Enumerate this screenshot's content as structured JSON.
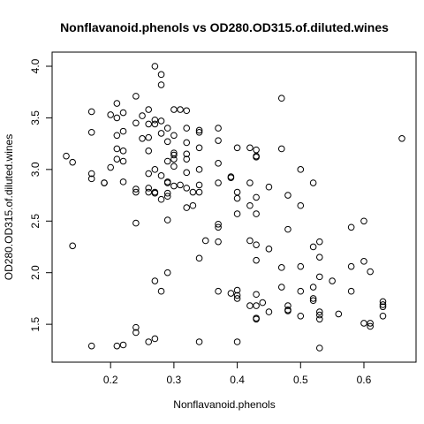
{
  "chart_data": {
    "type": "scatter",
    "title": "Nonflavanoid.phenols vs OD280.OD315.of.diluted.wines",
    "xlabel": "Nonflavanoid.phenols",
    "ylabel": "OD280.OD315.of.diluted.wines",
    "xlim": [
      0.13,
      0.66
    ],
    "ylim": [
      1.27,
      4.0
    ],
    "xticks": [
      0.2,
      0.3,
      0.4,
      0.5,
      0.6
    ],
    "yticks": [
      1.5,
      2.0,
      2.5,
      3.0,
      3.5,
      4.0
    ],
    "xtick_labels": [
      "0.2",
      "0.3",
      "0.4",
      "0.5",
      "0.6"
    ],
    "ytick_labels": [
      "1.5",
      "2.0",
      "2.5",
      "3.0",
      "3.5",
      "4.0"
    ],
    "grid": false,
    "legend": "none",
    "points": [
      {
        "x": 0.27,
        "y": 4.0
      },
      {
        "x": 0.28,
        "y": 3.92
      },
      {
        "x": 0.28,
        "y": 3.82
      },
      {
        "x": 0.47,
        "y": 3.69
      },
      {
        "x": 0.24,
        "y": 3.71
      },
      {
        "x": 0.21,
        "y": 3.64
      },
      {
        "x": 0.26,
        "y": 3.58
      },
      {
        "x": 0.3,
        "y": 3.58
      },
      {
        "x": 0.31,
        "y": 3.58
      },
      {
        "x": 0.32,
        "y": 3.57
      },
      {
        "x": 0.17,
        "y": 3.56
      },
      {
        "x": 0.22,
        "y": 3.55
      },
      {
        "x": 0.25,
        "y": 3.52
      },
      {
        "x": 0.2,
        "y": 3.53
      },
      {
        "x": 0.21,
        "y": 3.5
      },
      {
        "x": 0.27,
        "y": 3.48
      },
      {
        "x": 0.24,
        "y": 3.45
      },
      {
        "x": 0.26,
        "y": 3.44
      },
      {
        "x": 0.27,
        "y": 3.44
      },
      {
        "x": 0.28,
        "y": 3.47
      },
      {
        "x": 0.29,
        "y": 3.4
      },
      {
        "x": 0.32,
        "y": 3.4
      },
      {
        "x": 0.34,
        "y": 3.38
      },
      {
        "x": 0.37,
        "y": 3.4
      },
      {
        "x": 0.17,
        "y": 3.36
      },
      {
        "x": 0.22,
        "y": 3.37
      },
      {
        "x": 0.21,
        "y": 3.33
      },
      {
        "x": 0.3,
        "y": 3.33
      },
      {
        "x": 0.34,
        "y": 3.36
      },
      {
        "x": 0.25,
        "y": 3.3
      },
      {
        "x": 0.26,
        "y": 3.31
      },
      {
        "x": 0.28,
        "y": 3.35
      },
      {
        "x": 0.29,
        "y": 3.27
      },
      {
        "x": 0.32,
        "y": 3.26
      },
      {
        "x": 0.37,
        "y": 3.28
      },
      {
        "x": 0.66,
        "y": 3.3
      },
      {
        "x": 0.4,
        "y": 3.21
      },
      {
        "x": 0.42,
        "y": 3.21
      },
      {
        "x": 0.43,
        "y": 3.19
      },
      {
        "x": 0.47,
        "y": 3.2
      },
      {
        "x": 0.21,
        "y": 3.2
      },
      {
        "x": 0.22,
        "y": 3.18
      },
      {
        "x": 0.26,
        "y": 3.18
      },
      {
        "x": 0.3,
        "y": 3.16
      },
      {
        "x": 0.3,
        "y": 3.14
      },
      {
        "x": 0.32,
        "y": 3.15
      },
      {
        "x": 0.34,
        "y": 3.21
      },
      {
        "x": 0.37,
        "y": 3.06
      },
      {
        "x": 0.43,
        "y": 3.13
      },
      {
        "x": 0.43,
        "y": 3.12
      },
      {
        "x": 0.13,
        "y": 3.13
      },
      {
        "x": 0.14,
        "y": 3.07
      },
      {
        "x": 0.21,
        "y": 3.1
      },
      {
        "x": 0.22,
        "y": 3.08
      },
      {
        "x": 0.29,
        "y": 3.08
      },
      {
        "x": 0.3,
        "y": 3.1
      },
      {
        "x": 0.32,
        "y": 3.1
      },
      {
        "x": 0.2,
        "y": 3.02
      },
      {
        "x": 0.27,
        "y": 3.0
      },
      {
        "x": 0.3,
        "y": 3.03
      },
      {
        "x": 0.34,
        "y": 3.0
      },
      {
        "x": 0.5,
        "y": 3.0
      },
      {
        "x": 0.17,
        "y": 2.96
      },
      {
        "x": 0.26,
        "y": 2.96
      },
      {
        "x": 0.28,
        "y": 2.94
      },
      {
        "x": 0.32,
        "y": 2.97
      },
      {
        "x": 0.39,
        "y": 2.92
      },
      {
        "x": 0.39,
        "y": 2.93
      },
      {
        "x": 0.17,
        "y": 2.91
      },
      {
        "x": 0.19,
        "y": 2.87
      },
      {
        "x": 0.19,
        "y": 2.87
      },
      {
        "x": 0.22,
        "y": 2.88
      },
      {
        "x": 0.29,
        "y": 2.87
      },
      {
        "x": 0.29,
        "y": 2.88
      },
      {
        "x": 0.3,
        "y": 2.84
      },
      {
        "x": 0.31,
        "y": 2.85
      },
      {
        "x": 0.32,
        "y": 2.82
      },
      {
        "x": 0.34,
        "y": 2.85
      },
      {
        "x": 0.37,
        "y": 2.87
      },
      {
        "x": 0.42,
        "y": 2.87
      },
      {
        "x": 0.45,
        "y": 2.83
      },
      {
        "x": 0.52,
        "y": 2.87
      },
      {
        "x": 0.24,
        "y": 2.78
      },
      {
        "x": 0.24,
        "y": 2.81
      },
      {
        "x": 0.26,
        "y": 2.78
      },
      {
        "x": 0.26,
        "y": 2.82
      },
      {
        "x": 0.27,
        "y": 2.77
      },
      {
        "x": 0.27,
        "y": 2.78
      },
      {
        "x": 0.28,
        "y": 2.71
      },
      {
        "x": 0.29,
        "y": 2.74
      },
      {
        "x": 0.29,
        "y": 2.77
      },
      {
        "x": 0.33,
        "y": 2.78
      },
      {
        "x": 0.34,
        "y": 2.78
      },
      {
        "x": 0.4,
        "y": 2.78
      },
      {
        "x": 0.4,
        "y": 2.72
      },
      {
        "x": 0.43,
        "y": 2.73
      },
      {
        "x": 0.48,
        "y": 2.75
      },
      {
        "x": 0.32,
        "y": 2.63
      },
      {
        "x": 0.33,
        "y": 2.65
      },
      {
        "x": 0.42,
        "y": 2.65
      },
      {
        "x": 0.5,
        "y": 2.65
      },
      {
        "x": 0.4,
        "y": 2.57
      },
      {
        "x": 0.43,
        "y": 2.57
      },
      {
        "x": 0.29,
        "y": 2.51
      },
      {
        "x": 0.24,
        "y": 2.48
      },
      {
        "x": 0.37,
        "y": 2.47
      },
      {
        "x": 0.37,
        "y": 2.44
      },
      {
        "x": 0.48,
        "y": 2.42
      },
      {
        "x": 0.58,
        "y": 2.44
      },
      {
        "x": 0.6,
        "y": 2.5
      },
      {
        "x": 0.35,
        "y": 2.31
      },
      {
        "x": 0.37,
        "y": 2.3
      },
      {
        "x": 0.42,
        "y": 2.31
      },
      {
        "x": 0.43,
        "y": 2.27
      },
      {
        "x": 0.45,
        "y": 2.23
      },
      {
        "x": 0.52,
        "y": 2.25
      },
      {
        "x": 0.53,
        "y": 2.3
      },
      {
        "x": 0.14,
        "y": 2.26
      },
      {
        "x": 0.34,
        "y": 2.14
      },
      {
        "x": 0.43,
        "y": 2.12
      },
      {
        "x": 0.53,
        "y": 2.15
      },
      {
        "x": 0.47,
        "y": 2.05
      },
      {
        "x": 0.5,
        "y": 2.06
      },
      {
        "x": 0.58,
        "y": 2.06
      },
      {
        "x": 0.6,
        "y": 2.11
      },
      {
        "x": 0.29,
        "y": 2.0
      },
      {
        "x": 0.61,
        "y": 2.01
      },
      {
        "x": 0.53,
        "y": 1.96
      },
      {
        "x": 0.55,
        "y": 1.92
      },
      {
        "x": 0.27,
        "y": 1.92
      },
      {
        "x": 0.52,
        "y": 1.86
      },
      {
        "x": 0.47,
        "y": 1.86
      },
      {
        "x": 0.28,
        "y": 1.82
      },
      {
        "x": 0.37,
        "y": 1.82
      },
      {
        "x": 0.4,
        "y": 1.83
      },
      {
        "x": 0.39,
        "y": 1.8
      },
      {
        "x": 0.4,
        "y": 1.78
      },
      {
        "x": 0.43,
        "y": 1.79
      },
      {
        "x": 0.5,
        "y": 1.82
      },
      {
        "x": 0.58,
        "y": 1.82
      },
      {
        "x": 0.4,
        "y": 1.75
      },
      {
        "x": 0.52,
        "y": 1.75
      },
      {
        "x": 0.52,
        "y": 1.73
      },
      {
        "x": 0.44,
        "y": 1.71
      },
      {
        "x": 0.42,
        "y": 1.68
      },
      {
        "x": 0.43,
        "y": 1.68
      },
      {
        "x": 0.48,
        "y": 1.68
      },
      {
        "x": 0.63,
        "y": 1.72
      },
      {
        "x": 0.63,
        "y": 1.69
      },
      {
        "x": 0.63,
        "y": 1.67
      },
      {
        "x": 0.48,
        "y": 1.64
      },
      {
        "x": 0.48,
        "y": 1.63
      },
      {
        "x": 0.45,
        "y": 1.62
      },
      {
        "x": 0.53,
        "y": 1.62
      },
      {
        "x": 0.53,
        "y": 1.59
      },
      {
        "x": 0.56,
        "y": 1.6
      },
      {
        "x": 0.5,
        "y": 1.58
      },
      {
        "x": 0.43,
        "y": 1.56
      },
      {
        "x": 0.43,
        "y": 1.55
      },
      {
        "x": 0.53,
        "y": 1.55
      },
      {
        "x": 0.63,
        "y": 1.58
      },
      {
        "x": 0.6,
        "y": 1.51
      },
      {
        "x": 0.61,
        "y": 1.51
      },
      {
        "x": 0.61,
        "y": 1.48
      },
      {
        "x": 0.24,
        "y": 1.47
      },
      {
        "x": 0.24,
        "y": 1.42
      },
      {
        "x": 0.26,
        "y": 1.33
      },
      {
        "x": 0.27,
        "y": 1.36
      },
      {
        "x": 0.34,
        "y": 1.33
      },
      {
        "x": 0.4,
        "y": 1.33
      },
      {
        "x": 0.17,
        "y": 1.29
      },
      {
        "x": 0.21,
        "y": 1.29
      },
      {
        "x": 0.22,
        "y": 1.3
      },
      {
        "x": 0.53,
        "y": 1.27
      }
    ]
  }
}
